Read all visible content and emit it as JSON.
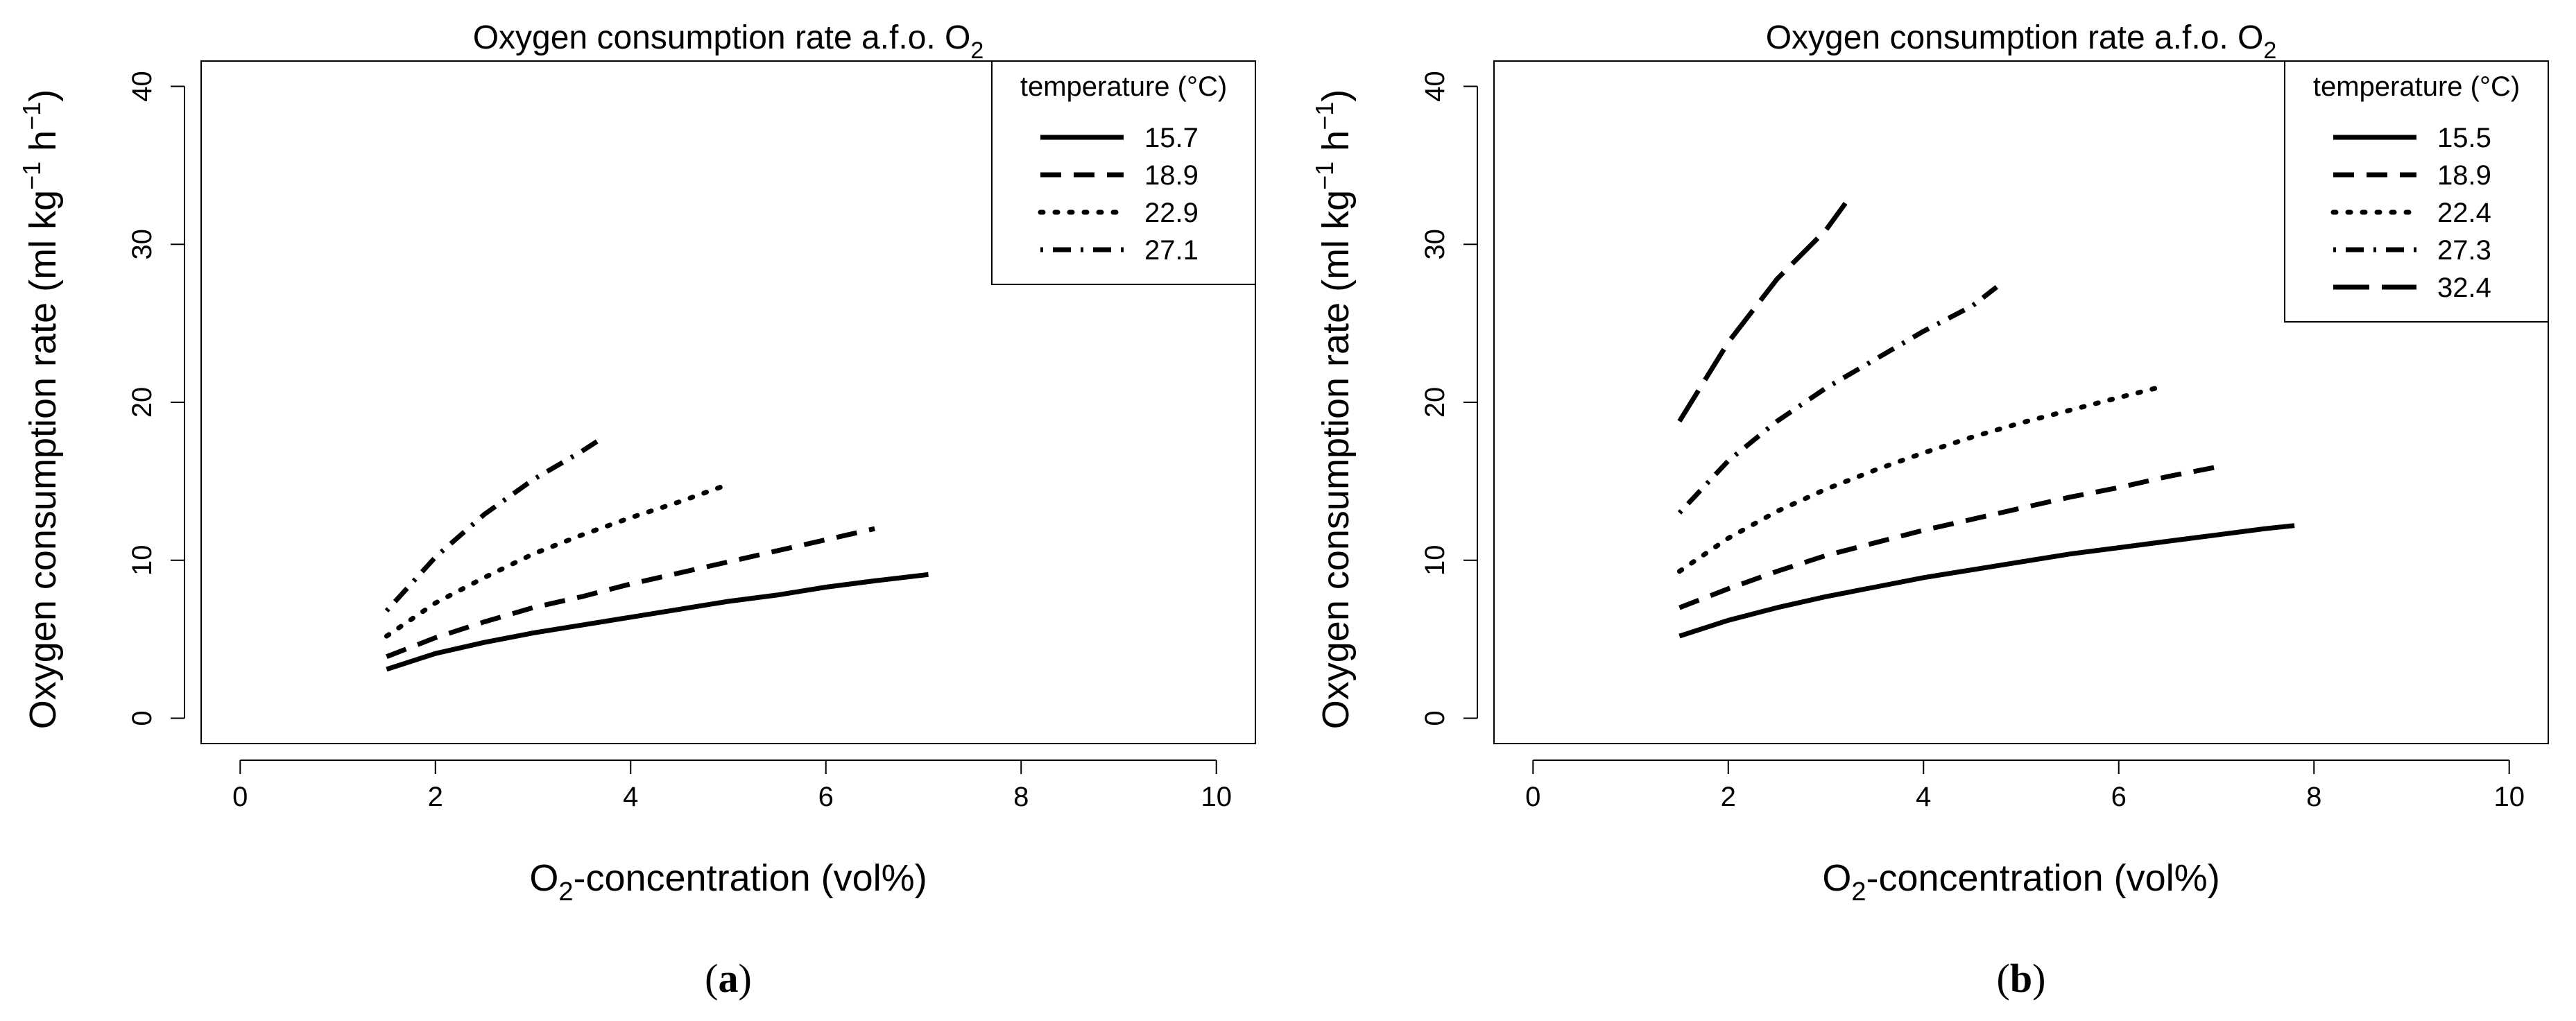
{
  "chart_data": [
    {
      "type": "line",
      "panel_label": "a",
      "title": "Oxygen consumption rate a.f.o. O",
      "title_sub": "2",
      "xlabel_prefix": "O",
      "xlabel_sub": "2",
      "xlabel_rest": "-concentration (vol%)",
      "ylabel": "Oxygen consumption rate (ml kg",
      "ylabel_sup1": "−1",
      "ylabel_mid": " h",
      "ylabel_sup2": "−1",
      "ylabel_end": ")",
      "xlim": [
        -0.4,
        10.4
      ],
      "ylim": [
        -1.6,
        41.6
      ],
      "xticks": [
        0,
        2,
        4,
        6,
        8,
        10
      ],
      "yticks": [
        0,
        10,
        20,
        30,
        40
      ],
      "grid": false,
      "legend_position": "top-right",
      "legend_title": "temperature (°C)",
      "series": [
        {
          "name": "15.7",
          "style": "solid",
          "x": [
            1.5,
            2,
            2.5,
            3,
            3.5,
            4,
            4.5,
            5,
            5.5,
            6,
            6.5,
            7.05
          ],
          "y": [
            3.1,
            4.1,
            4.8,
            5.4,
            5.9,
            6.4,
            6.9,
            7.4,
            7.8,
            8.3,
            8.7,
            9.1
          ]
        },
        {
          "name": "18.9",
          "style": "dash",
          "x": [
            1.5,
            2,
            2.5,
            3,
            3.5,
            4,
            4.5,
            5,
            5.5,
            6,
            6.5
          ],
          "y": [
            3.9,
            5.1,
            6.1,
            7.0,
            7.7,
            8.5,
            9.2,
            9.9,
            10.6,
            11.3,
            12.0
          ]
        },
        {
          "name": "22.9",
          "style": "dot",
          "x": [
            1.5,
            2,
            2.5,
            3,
            3.5,
            4,
            4.5,
            5
          ],
          "y": [
            5.2,
            7.3,
            8.9,
            10.4,
            11.6,
            12.7,
            13.7,
            14.8
          ]
        },
        {
          "name": "27.1",
          "style": "dotdash",
          "x": [
            1.5,
            2,
            2.5,
            3,
            3.5,
            3.7
          ],
          "y": [
            6.8,
            10.2,
            12.9,
            15.1,
            16.9,
            17.7
          ]
        }
      ]
    },
    {
      "type": "line",
      "panel_label": "b",
      "title": "Oxygen consumption rate a.f.o. O",
      "title_sub": "2",
      "xlabel_prefix": "O",
      "xlabel_sub": "2",
      "xlabel_rest": "-concentration (vol%)",
      "ylabel": "Oxygen consumption rate (ml kg",
      "ylabel_sup1": "−1",
      "ylabel_mid": " h",
      "ylabel_sup2": "−1",
      "ylabel_end": ")",
      "xlim": [
        -0.4,
        10.4
      ],
      "ylim": [
        -1.6,
        41.6
      ],
      "xticks": [
        0,
        2,
        4,
        6,
        8,
        10
      ],
      "yticks": [
        0,
        10,
        20,
        30,
        40
      ],
      "grid": false,
      "legend_position": "top-right",
      "legend_title": "temperature (°C)",
      "series": [
        {
          "name": "15.5",
          "style": "solid",
          "x": [
            1.5,
            2,
            2.5,
            3,
            3.5,
            4,
            4.5,
            5,
            5.5,
            6,
            6.5,
            7,
            7.5,
            7.8
          ],
          "y": [
            5.2,
            6.2,
            7.0,
            7.7,
            8.3,
            8.9,
            9.4,
            9.9,
            10.4,
            10.8,
            11.2,
            11.6,
            12.0,
            12.2
          ]
        },
        {
          "name": "18.9",
          "style": "dash",
          "x": [
            1.5,
            2,
            2.5,
            3,
            3.5,
            4,
            4.5,
            5,
            5.5,
            6,
            6.5,
            7
          ],
          "y": [
            7.0,
            8.2,
            9.3,
            10.3,
            11.1,
            11.9,
            12.6,
            13.3,
            14.0,
            14.6,
            15.3,
            15.9
          ]
        },
        {
          "name": "22.4",
          "style": "dot",
          "x": [
            1.5,
            2,
            2.5,
            3,
            3.5,
            4,
            4.5,
            5,
            5.5,
            6,
            6.45
          ],
          "y": [
            9.3,
            11.4,
            13.1,
            14.5,
            15.7,
            16.8,
            17.8,
            18.7,
            19.5,
            20.3,
            21.0
          ]
        },
        {
          "name": "27.3",
          "style": "dotdash",
          "x": [
            1.5,
            2,
            2.5,
            3,
            3.5,
            4,
            4.5,
            4.75
          ],
          "y": [
            13.0,
            16.3,
            18.8,
            20.9,
            22.7,
            24.5,
            26.1,
            27.3
          ]
        },
        {
          "name": "32.4",
          "style": "longdash",
          "x": [
            1.5,
            2,
            2.5,
            3,
            3.2
          ],
          "y": [
            18.8,
            23.8,
            27.8,
            30.9,
            32.6
          ]
        }
      ]
    }
  ]
}
